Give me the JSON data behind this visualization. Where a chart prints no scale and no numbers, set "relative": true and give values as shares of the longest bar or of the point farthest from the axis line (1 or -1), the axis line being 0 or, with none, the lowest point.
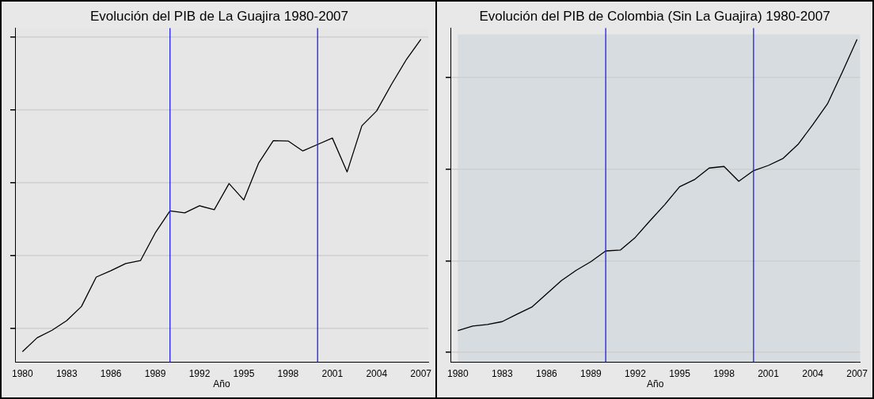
{
  "chart_data": [
    {
      "type": "line",
      "title": "Evolución del PIB de La Guajira 1980-2007",
      "xlabel": "Año",
      "relative": true,
      "grid": "y",
      "xlim": [
        1979.5,
        2007.5
      ],
      "xticks": [
        1980,
        1983,
        1986,
        1989,
        1992,
        1995,
        1998,
        2001,
        2004,
        2007
      ],
      "x": [
        1980,
        1981,
        1982,
        1983,
        1984,
        1985,
        1986,
        1987,
        1988,
        1989,
        1990,
        1991,
        1992,
        1993,
        1994,
        1995,
        1996,
        1997,
        1998,
        1999,
        2000,
        2001,
        2002,
        2003,
        2004,
        2005,
        2006,
        2007
      ],
      "series": [
        {
          "color": "#000000",
          "values": [
            0.032,
            0.075,
            0.098,
            0.128,
            0.172,
            0.263,
            0.283,
            0.305,
            0.314,
            0.4,
            0.468,
            0.462,
            0.484,
            0.472,
            0.553,
            0.502,
            0.616,
            0.686,
            0.685,
            0.654,
            0.674,
            0.694,
            0.589,
            0.732,
            0.778,
            0.86,
            0.936,
            1.0
          ]
        }
      ],
      "ref_lines": [
        {
          "axis": "x",
          "value": 1990,
          "color": "#2020e0"
        },
        {
          "axis": "x",
          "value": 2000,
          "color": "#2020e0"
        }
      ]
    },
    {
      "type": "line",
      "title": "Evolución del PIB de Colombia (Sin La Guajira) 1980-2007",
      "xlabel": "Año",
      "relative": true,
      "grid": "y",
      "xlim": [
        1979.5,
        2007.2
      ],
      "xticks": [
        1980,
        1983,
        1986,
        1989,
        1992,
        1995,
        1998,
        2001,
        2004,
        2007
      ],
      "x": [
        1980,
        1981,
        1982,
        1983,
        1984,
        1985,
        1986,
        1987,
        1988,
        1989,
        1990,
        1991,
        1992,
        1993,
        1994,
        1995,
        1996,
        1997,
        1998,
        1999,
        2000,
        2001,
        2002,
        2003,
        2004,
        2005,
        2006,
        2007
      ],
      "series": [
        {
          "color": "#000000",
          "values": [
            0.097,
            0.111,
            0.116,
            0.125,
            0.148,
            0.17,
            0.211,
            0.252,
            0.284,
            0.311,
            0.344,
            0.347,
            0.386,
            0.438,
            0.488,
            0.543,
            0.565,
            0.601,
            0.606,
            0.56,
            0.593,
            0.609,
            0.631,
            0.674,
            0.735,
            0.8,
            0.898,
            1.0
          ]
        }
      ],
      "ref_lines": [
        {
          "axis": "x",
          "value": 1990,
          "color": "#2020e0"
        },
        {
          "axis": "x",
          "value": 2000,
          "color": "#2020e0"
        }
      ]
    }
  ]
}
